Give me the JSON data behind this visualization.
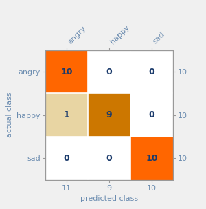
{
  "classes": [
    "angry",
    "happy",
    "sad"
  ],
  "matrix": [
    [
      10,
      0,
      0
    ],
    [
      1,
      9,
      0
    ],
    [
      0,
      0,
      10
    ]
  ],
  "col_sums": [
    "11",
    "9",
    "10"
  ],
  "row_sums": [
    "10",
    "10",
    "10"
  ],
  "cell_colors": [
    [
      "#FF6600",
      "#FFFFFF",
      "#FFFFFF"
    ],
    [
      "#E8D5A3",
      "#CC7700",
      "#FFFFFF"
    ],
    [
      "#FFFFFF",
      "#FFFFFF",
      "#FF6600"
    ]
  ],
  "text_color": "#1A3A6B",
  "axis_label_color": "#6B8CB0",
  "tick_label_color": "#6B8CB0",
  "xlabel": "predicted class",
  "ylabel": "actual class",
  "figsize": [
    3.0,
    3.03
  ],
  "dpi": 100,
  "bg_color": "#F0F0F0"
}
